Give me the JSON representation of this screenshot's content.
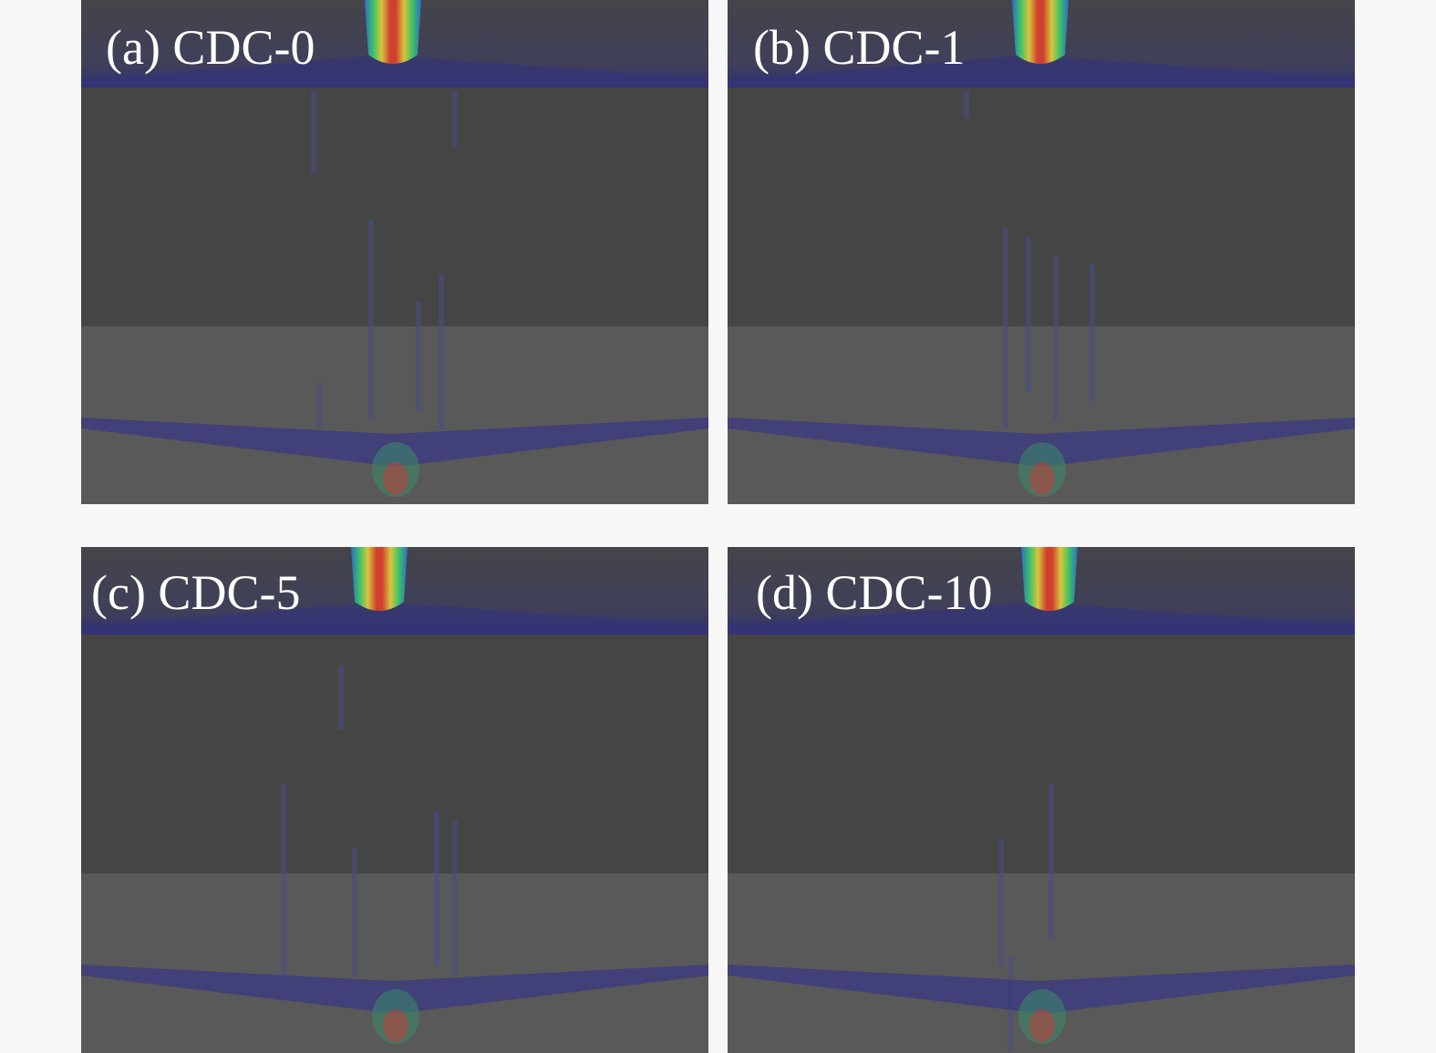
{
  "panels": [
    {
      "label": "(a) CDC-0"
    },
    {
      "label": "(b) CDC-1"
    },
    {
      "label": "(c) CDC-5"
    },
    {
      "label": "(d) CDC-10"
    }
  ]
}
